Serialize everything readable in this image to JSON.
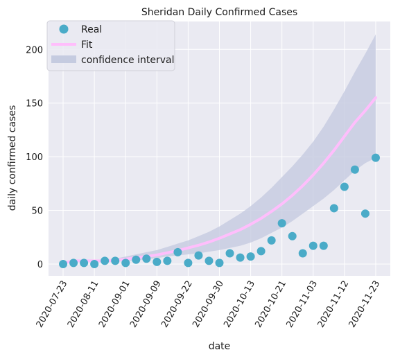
{
  "chart_data": {
    "type": "scatter",
    "title": "Sheridan Daily Confirmed Cases",
    "xlabel": "date",
    "ylabel": "daily confirmed cases",
    "ylim": [
      -11,
      226
    ],
    "xlim": [
      -1.4,
      31.4
    ],
    "y_ticks": [
      0,
      50,
      100,
      150,
      200
    ],
    "x_ticks": [
      {
        "x": 0,
        "label": "2020-07-23"
      },
      {
        "x": 3,
        "label": "2020-08-11"
      },
      {
        "x": 6,
        "label": "2020-09-01"
      },
      {
        "x": 9,
        "label": "2020-09-09"
      },
      {
        "x": 12,
        "label": "2020-09-22"
      },
      {
        "x": 15,
        "label": "2020-09-30"
      },
      {
        "x": 18,
        "label": "2020-10-13"
      },
      {
        "x": 21,
        "label": "2020-10-21"
      },
      {
        "x": 24,
        "label": "2020-11-03"
      },
      {
        "x": 27,
        "label": "2020-11-12"
      },
      {
        "x": 30,
        "label": "2020-11-23"
      }
    ],
    "grid": true,
    "legend_position": "top-left",
    "colors": {
      "background": "#eaeaf2",
      "grid": "#ffffff",
      "real": "#4aabc8",
      "fit": "#ffbefc",
      "ci": "#c5cbe0"
    },
    "series": [
      {
        "name": "Real",
        "kind": "scatter",
        "x": [
          0,
          1,
          2,
          3,
          4,
          5,
          6,
          7,
          8,
          9,
          10,
          11,
          12,
          13,
          14,
          15,
          16,
          17,
          18,
          19,
          20,
          21,
          22,
          23,
          24,
          25,
          26,
          27,
          28,
          29,
          30
        ],
        "y": [
          0,
          1,
          1,
          0,
          3,
          3,
          1,
          4,
          5,
          2,
          3,
          11,
          1,
          8,
          3,
          1,
          10,
          6,
          7,
          12,
          22,
          38,
          26,
          10,
          17,
          17,
          52,
          72,
          88,
          47,
          99
        ]
      },
      {
        "name": "Fit",
        "kind": "line",
        "x": [
          0,
          0.5,
          1,
          2,
          3,
          4,
          5,
          6,
          7,
          8,
          9,
          10,
          11,
          12,
          13,
          14,
          15,
          16,
          17,
          18,
          19,
          20,
          21,
          22,
          23,
          24,
          25,
          26,
          27,
          28,
          29,
          30
        ],
        "y": [
          0,
          2,
          3,
          3,
          3,
          3,
          3.5,
          4.5,
          6,
          7,
          8.5,
          10.5,
          12.5,
          15,
          17.5,
          20.5,
          24,
          28,
          32,
          37,
          42.5,
          49,
          56,
          64,
          73,
          83,
          94,
          106,
          119,
          132,
          143,
          155
        ]
      },
      {
        "name": "confidence interval",
        "kind": "band",
        "x": [
          0,
          0.5,
          1,
          2,
          3,
          4,
          5,
          6,
          7,
          8,
          9,
          10,
          11,
          12,
          13,
          14,
          15,
          16,
          17,
          18,
          19,
          20,
          21,
          22,
          23,
          24,
          25,
          26,
          27,
          28,
          29,
          30
        ],
        "y_lower": [
          0,
          1,
          2,
          2,
          2,
          2,
          2,
          3,
          3.5,
          4.5,
          5.5,
          7,
          8,
          9,
          10,
          11.5,
          13,
          15,
          17,
          20,
          24,
          29,
          34,
          40,
          47,
          54,
          61,
          69,
          78,
          87,
          94,
          99
        ],
        "y_upper": [
          1,
          2.5,
          3.5,
          3.5,
          3.5,
          4,
          5,
          7,
          9,
          11,
          13,
          16,
          19,
          22,
          26,
          30,
          35,
          41,
          47,
          54,
          62,
          71,
          81,
          91,
          102,
          114,
          128,
          144,
          161,
          179,
          196,
          214
        ]
      }
    ]
  }
}
